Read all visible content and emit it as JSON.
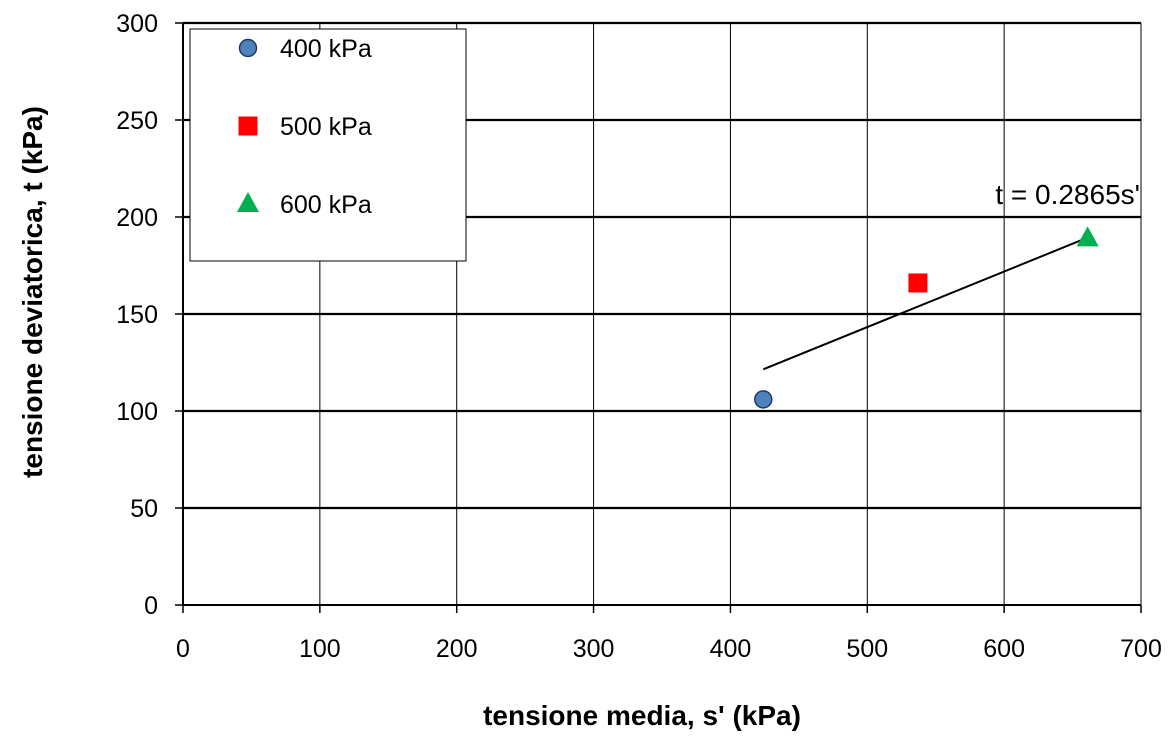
{
  "chart_data": {
    "type": "scatter",
    "title": "",
    "xlabel": "tensione media, s' (kPa)",
    "ylabel": "tensione deviatorica, t (kPa)",
    "xlim": [
      0,
      700
    ],
    "ylim": [
      0,
      300
    ],
    "x_ticks": [
      "0",
      "100",
      "200",
      "300",
      "400",
      "500",
      "600",
      "700"
    ],
    "y_ticks": [
      "0",
      "50",
      "100",
      "150",
      "200",
      "250",
      "300"
    ],
    "grid": "on",
    "legend_position": "top-left",
    "series": [
      {
        "name": "400 kPa",
        "marker": "circle",
        "color": "#4f81bd",
        "x": [
          424
        ],
        "y": [
          106
        ]
      },
      {
        "name": "500 kPa",
        "marker": "square",
        "color": "#ff0000",
        "x": [
          537
        ],
        "y": [
          166
        ]
      },
      {
        "name": "600 kPa",
        "marker": "triangle",
        "color": "#00b050",
        "x": [
          661
        ],
        "y": [
          189
        ]
      }
    ],
    "trendline": {
      "label": "t = 0.2865s'",
      "slope": 0.2865,
      "x_range": [
        424,
        661
      ]
    }
  }
}
